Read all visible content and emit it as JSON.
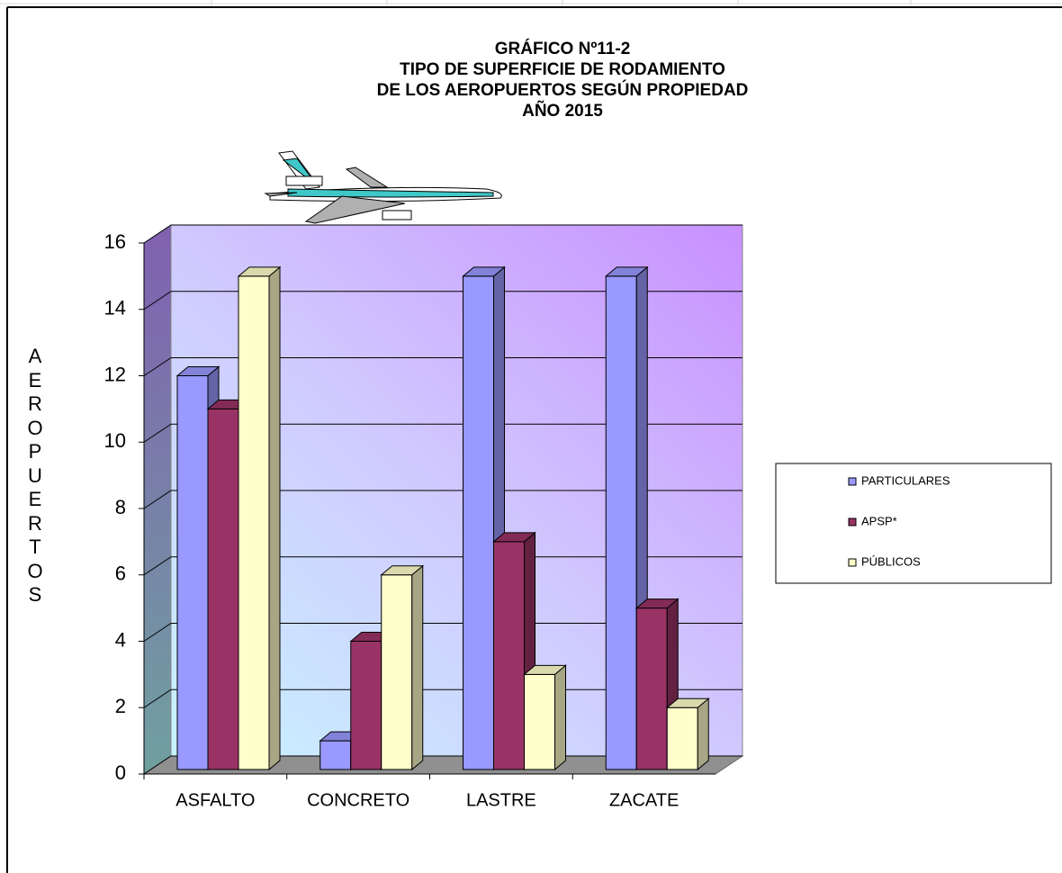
{
  "chart_data": {
    "type": "bar3d",
    "title": [
      "GRÁFICO Nº11-2",
      "TIPO DE SUPERFICIE  DE RODAMIENTO",
      "DE LOS AEROPUERTOS  SEGÚN  PROPIEDAD",
      "AÑO 2015"
    ],
    "y_label": "AEROPUERTOS",
    "categories": [
      "ASFALTO",
      "CONCRETO",
      "LASTRE",
      "ZACATE"
    ],
    "series": [
      {
        "name": "PARTICULARES",
        "color": "#9999ff",
        "values": [
          12,
          1,
          15,
          15
        ]
      },
      {
        "name": "APSP*",
        "color": "#993366",
        "values": [
          11,
          4,
          7,
          5
        ]
      },
      {
        "name": "PÚBLICOS",
        "color": "#ffffcc",
        "values": [
          15,
          6,
          3,
          2
        ]
      }
    ],
    "ylim": [
      0,
      16
    ],
    "yticks": [
      0,
      2,
      4,
      6,
      8,
      10,
      12,
      14,
      16
    ],
    "grid": true,
    "legend": "right"
  }
}
